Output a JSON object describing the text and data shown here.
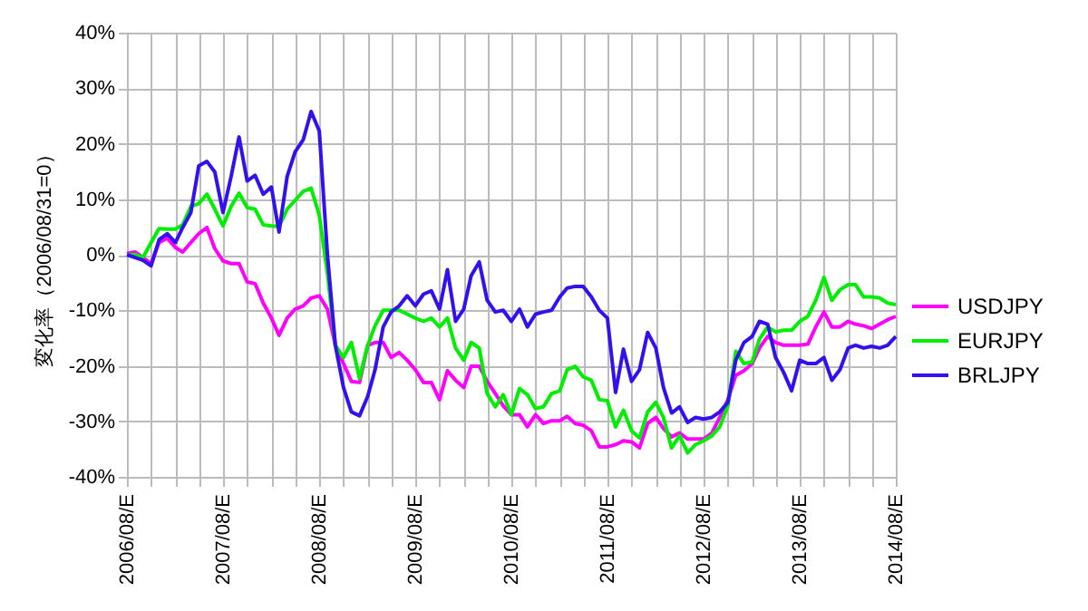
{
  "chart_data": {
    "type": "line",
    "ylabel": "変化率（2006/08/31=0）",
    "x": [
      "2006-08",
      "2006-09",
      "2006-10",
      "2006-11",
      "2006-12",
      "2007-01",
      "2007-02",
      "2007-03",
      "2007-04",
      "2007-05",
      "2007-06",
      "2007-07",
      "2007-08",
      "2007-09",
      "2007-10",
      "2007-11",
      "2007-12",
      "2008-01",
      "2008-02",
      "2008-03",
      "2008-04",
      "2008-05",
      "2008-06",
      "2008-07",
      "2008-08",
      "2008-09",
      "2008-10",
      "2008-11",
      "2008-12",
      "2009-01",
      "2009-02",
      "2009-03",
      "2009-04",
      "2009-05",
      "2009-06",
      "2009-07",
      "2009-08",
      "2009-09",
      "2009-10",
      "2009-11",
      "2009-12",
      "2010-01",
      "2010-02",
      "2010-03",
      "2010-04",
      "2010-05",
      "2010-06",
      "2010-07",
      "2010-08",
      "2010-09",
      "2010-10",
      "2010-11",
      "2010-12",
      "2011-01",
      "2011-02",
      "2011-03",
      "2011-04",
      "2011-05",
      "2011-06",
      "2011-07",
      "2011-08",
      "2011-09",
      "2011-10",
      "2011-11",
      "2011-12",
      "2012-01",
      "2012-02",
      "2012-03",
      "2012-04",
      "2012-05",
      "2012-06",
      "2012-07",
      "2012-08",
      "2012-09",
      "2012-10",
      "2012-11",
      "2012-12",
      "2013-01",
      "2013-02",
      "2013-03",
      "2013-04",
      "2013-05",
      "2013-06",
      "2013-07",
      "2013-08",
      "2013-09",
      "2013-10",
      "2013-11",
      "2013-12",
      "2014-01",
      "2014-02",
      "2014-03",
      "2014-04",
      "2014-05",
      "2014-06",
      "2014-07",
      "2014-08"
    ],
    "series": [
      {
        "name": "USDJPY",
        "color": "#ff00ff",
        "values": [
          0.2,
          0.5,
          -0.5,
          -1.6,
          2.2,
          3,
          1.3,
          0.5,
          2.2,
          3.8,
          4.9,
          1.1,
          -1.1,
          -1.6,
          -1.6,
          -4.9,
          -5.2,
          -8.7,
          -11.4,
          -14.5,
          -11.4,
          -9.8,
          -9.2,
          -7.8,
          -7.4,
          -9.8,
          -16.3,
          -19.6,
          -22.8,
          -23,
          -16.3,
          -15.8,
          -15.8,
          -18.5,
          -17.6,
          -19,
          -20.7,
          -23,
          -23,
          -26.1,
          -20.9,
          -22.6,
          -23.9,
          -20.1,
          -20.1,
          -22.8,
          -25,
          -27.2,
          -28.8,
          -28.8,
          -31,
          -28.8,
          -30.4,
          -29.9,
          -29.9,
          -29.1,
          -30.4,
          -30.7,
          -31.7,
          -34.6,
          -34.6,
          -34.2,
          -33.5,
          -33.7,
          -34.8,
          -30.4,
          -29.3,
          -31.3,
          -32.8,
          -32.1,
          -33.2,
          -33.2,
          -33.2,
          -32.1,
          -29.3,
          -26.1,
          -21.7,
          -20.9,
          -19.6,
          -16.8,
          -14.7,
          -15.8,
          -16.3,
          -16.3,
          -16.3,
          -16.1,
          -13,
          -10.3,
          -13,
          -13,
          -12,
          -12.5,
          -12.8,
          -13.3,
          -12.5,
          -11.7,
          -11.1
        ]
      },
      {
        "name": "EURJPY",
        "color": "#00ee00",
        "values": [
          0,
          0,
          -0.5,
          2.2,
          4.7,
          4.6,
          4.6,
          5.4,
          8.7,
          9.2,
          10.9,
          8.2,
          5.2,
          8.7,
          11.1,
          8.5,
          8.2,
          5.4,
          5.2,
          5.1,
          8.2,
          9.8,
          11.4,
          12,
          7.1,
          -3.3,
          -16.3,
          -18.5,
          -15.8,
          -22.3,
          -16.3,
          -12.8,
          -10,
          -10,
          -10,
          -10.7,
          -11.4,
          -12,
          -11.4,
          -13,
          -11.4,
          -16.8,
          -19,
          -15.8,
          -16.8,
          -25,
          -27.4,
          -25.2,
          -28.8,
          -24.1,
          -25.2,
          -27.7,
          -27.4,
          -25,
          -24.5,
          -20.7,
          -20.1,
          -22,
          -22.6,
          -26.1,
          -26.3,
          -31,
          -28,
          -31.7,
          -33,
          -28.3,
          -26.6,
          -29.3,
          -34.8,
          -32.6,
          -35.7,
          -34.2,
          -33.5,
          -32.6,
          -31,
          -27.2,
          -17.4,
          -19.6,
          -19.3,
          -15.2,
          -13,
          -13.9,
          -13.6,
          -13.6,
          -12,
          -11.1,
          -8.2,
          -4.1,
          -8.2,
          -6.3,
          -5.4,
          -5.4,
          -7.6,
          -7.6,
          -7.8,
          -8.7,
          -9
        ]
      },
      {
        "name": "BRLJPY",
        "color": "#3311ee",
        "values": [
          0,
          -0.5,
          -1,
          -2,
          2.7,
          3.8,
          2.2,
          4.9,
          7.6,
          16,
          16.8,
          14.9,
          7.6,
          14.1,
          21.2,
          13.3,
          14.3,
          10.9,
          12.2,
          4.1,
          14.1,
          18.5,
          20.7,
          25.8,
          22.3,
          0,
          -16.3,
          -23.9,
          -28.3,
          -29,
          -25.5,
          -20.7,
          -13,
          -10.3,
          -9.2,
          -7.4,
          -9.2,
          -7.1,
          -6.5,
          -9.8,
          -2.7,
          -12,
          -9.8,
          -3.8,
          -1.3,
          -8.2,
          -10.3,
          -10,
          -12,
          -9.8,
          -13,
          -10.7,
          -10.3,
          -10,
          -7.6,
          -6,
          -5.7,
          -5.7,
          -7.6,
          -10,
          -11.4,
          -24.8,
          -17,
          -22.8,
          -20.7,
          -14,
          -16.8,
          -23.9,
          -28.5,
          -27.4,
          -30.2,
          -29.3,
          -29.6,
          -29.3,
          -28.3,
          -26.6,
          -19,
          -15.8,
          -14.7,
          -12,
          -12.5,
          -18.5,
          -21.2,
          -24.5,
          -19,
          -19.6,
          -19.6,
          -18.5,
          -22.6,
          -20.7,
          -16.8,
          -16.3,
          -16.8,
          -16.5,
          -16.8,
          -16.3,
          -14.7
        ]
      }
    ],
    "xlim": [
      "2006-08",
      "2014-08"
    ],
    "xticks": [
      {
        "value": "2006-08",
        "label": "2006/08/E"
      },
      {
        "value": "2006-11",
        "label": null
      },
      {
        "value": "2007-02",
        "label": null
      },
      {
        "value": "2007-05",
        "label": null
      },
      {
        "value": "2007-08",
        "label": "2007/08/E"
      },
      {
        "value": "2007-11",
        "label": null
      },
      {
        "value": "2008-02",
        "label": null
      },
      {
        "value": "2008-05",
        "label": null
      },
      {
        "value": "2008-08",
        "label": "2008/08/E"
      },
      {
        "value": "2008-11",
        "label": null
      },
      {
        "value": "2009-02",
        "label": null
      },
      {
        "value": "2009-05",
        "label": null
      },
      {
        "value": "2009-08",
        "label": "2009/08/E"
      },
      {
        "value": "2009-11",
        "label": null
      },
      {
        "value": "2010-02",
        "label": null
      },
      {
        "value": "2010-05",
        "label": null
      },
      {
        "value": "2010-08",
        "label": "2010/08/E"
      },
      {
        "value": "2010-11",
        "label": null
      },
      {
        "value": "2011-02",
        "label": null
      },
      {
        "value": "2011-05",
        "label": null
      },
      {
        "value": "2011-08",
        "label": "2011/08/E"
      },
      {
        "value": "2011-11",
        "label": null
      },
      {
        "value": "2012-02",
        "label": null
      },
      {
        "value": "2012-05",
        "label": null
      },
      {
        "value": "2012-08",
        "label": "2012/08/E"
      },
      {
        "value": "2012-11",
        "label": null
      },
      {
        "value": "2013-02",
        "label": null
      },
      {
        "value": "2013-05",
        "label": null
      },
      {
        "value": "2013-08",
        "label": "2013/08/E"
      },
      {
        "value": "2013-11",
        "label": null
      },
      {
        "value": "2014-02",
        "label": null
      },
      {
        "value": "2014-05",
        "label": null
      },
      {
        "value": "2014-08",
        "label": "2014/08/E"
      }
    ],
    "ylim": [
      -40,
      40
    ],
    "yticks": [
      {
        "value": -40,
        "label": "-40%"
      },
      {
        "value": -30,
        "label": "-30%"
      },
      {
        "value": -20,
        "label": "-20%"
      },
      {
        "value": -10,
        "label": "-10%"
      },
      {
        "value": 0,
        "label": "0%"
      },
      {
        "value": 10,
        "label": "10%"
      },
      {
        "value": 20,
        "label": "20%"
      },
      {
        "value": 30,
        "label": "30%"
      },
      {
        "value": 40,
        "label": "40%"
      }
    ],
    "grid": true,
    "legend": "right",
    "line_style": "solid"
  }
}
